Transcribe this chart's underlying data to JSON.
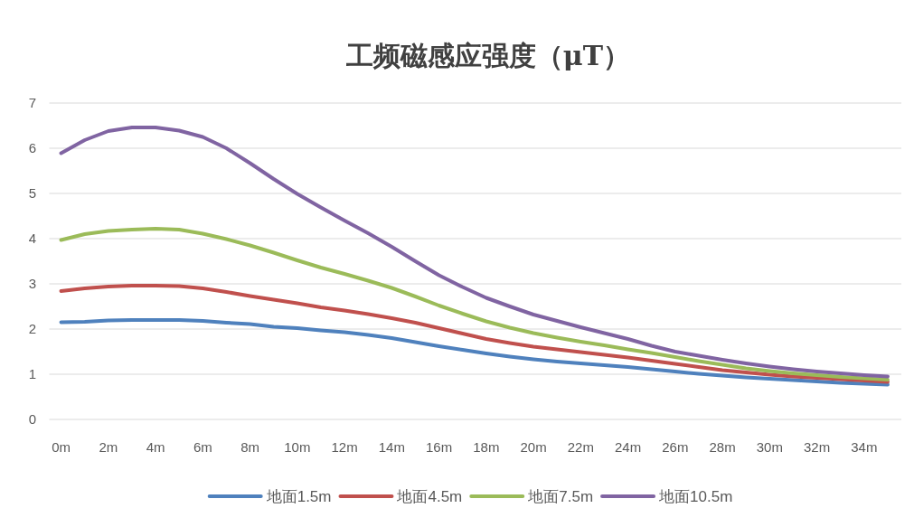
{
  "chart_data": {
    "type": "line",
    "title": "工频磁感应强度（μT）",
    "categories": [
      "0m",
      null,
      "2m",
      null,
      "4m",
      null,
      "6m",
      null,
      "8m",
      null,
      "10m",
      null,
      "12m",
      null,
      "14m",
      null,
      "16m",
      null,
      "18m",
      null,
      "20m",
      null,
      "22m",
      null,
      "24m",
      null,
      "26m",
      null,
      "28m",
      null,
      "30m",
      null,
      "32m",
      null,
      "34m",
      null
    ],
    "series": [
      {
        "name": "地面1.5m",
        "color": "#4f81bd",
        "values": [
          2.15,
          2.16,
          2.19,
          2.2,
          2.2,
          2.2,
          2.18,
          2.14,
          2.11,
          2.05,
          2.02,
          1.97,
          1.93,
          1.87,
          1.8,
          1.71,
          1.62,
          1.54,
          1.46,
          1.39,
          1.33,
          1.28,
          1.24,
          1.2,
          1.16,
          1.11,
          1.06,
          1.01,
          0.97,
          0.93,
          0.9,
          0.87,
          0.84,
          0.81,
          0.79,
          0.77
        ]
      },
      {
        "name": "地面4.5m",
        "color": "#c0504d",
        "values": [
          2.84,
          2.9,
          2.94,
          2.96,
          2.96,
          2.95,
          2.9,
          2.82,
          2.73,
          2.65,
          2.57,
          2.48,
          2.41,
          2.33,
          2.24,
          2.14,
          2.02,
          1.9,
          1.78,
          1.69,
          1.61,
          1.55,
          1.49,
          1.43,
          1.37,
          1.3,
          1.23,
          1.16,
          1.09,
          1.04,
          0.99,
          0.95,
          0.92,
          0.89,
          0.86,
          0.83
        ]
      },
      {
        "name": "地面7.5m",
        "color": "#9bbb59",
        "values": [
          3.97,
          4.1,
          4.17,
          4.2,
          4.22,
          4.2,
          4.11,
          3.99,
          3.85,
          3.69,
          3.52,
          3.36,
          3.22,
          3.07,
          2.91,
          2.72,
          2.52,
          2.34,
          2.17,
          2.03,
          1.91,
          1.81,
          1.72,
          1.64,
          1.55,
          1.47,
          1.38,
          1.29,
          1.21,
          1.13,
          1.07,
          1.02,
          0.98,
          0.94,
          0.91,
          0.88
        ]
      },
      {
        "name": "地面10.5m",
        "color": "#8064a2",
        "values": [
          5.89,
          6.18,
          6.38,
          6.46,
          6.46,
          6.39,
          6.25,
          6.0,
          5.67,
          5.32,
          4.99,
          4.69,
          4.4,
          4.12,
          3.82,
          3.5,
          3.19,
          2.93,
          2.69,
          2.5,
          2.32,
          2.18,
          2.04,
          1.91,
          1.78,
          1.63,
          1.5,
          1.41,
          1.32,
          1.24,
          1.17,
          1.11,
          1.06,
          1.02,
          0.98,
          0.95
        ]
      }
    ],
    "ylim": [
      0,
      7
    ],
    "yticks": [
      0,
      1,
      2,
      3,
      4,
      5,
      6,
      7
    ],
    "grid": "y",
    "legend": "bottom"
  }
}
